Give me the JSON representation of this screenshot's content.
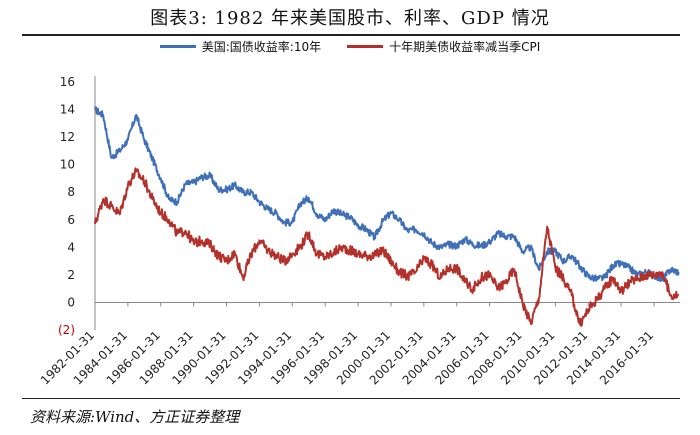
{
  "figure": {
    "title": "图表3:   1982 年来美国股市、利率、GDP 情况",
    "source": "资料来源:Wind、方正证券整理"
  },
  "chart_data": {
    "type": "line",
    "title": "",
    "xlabel": "",
    "ylabel": "",
    "ylim": [
      -2,
      16
    ],
    "yticks": [
      16,
      14,
      12,
      10,
      8,
      6,
      4,
      2,
      0
    ],
    "yticks_special": [
      "(2)"
    ],
    "x_ticks": [
      "1982-01-31",
      "1984-01-31",
      "1986-01-31",
      "1988-01-31",
      "1990-01-31",
      "1992-01-31",
      "1994-01-31",
      "1996-01-31",
      "1998-01-31",
      "2000-01-31",
      "2002-01-31",
      "2004-01-31",
      "2006-01-31",
      "2008-01-31",
      "2010-01-31",
      "2012-01-31",
      "2014-01-31",
      "2016-01-31"
    ],
    "grid": false,
    "legend_position": "top-center",
    "series": [
      {
        "name": "美国:国债收益率:10年",
        "color": "#3E6FB8",
        "x": [
          1982.0,
          1982.5,
          1983.0,
          1983.5,
          1984.0,
          1984.5,
          1985.0,
          1985.5,
          1986.0,
          1986.5,
          1987.0,
          1987.5,
          1988.0,
          1988.5,
          1989.0,
          1989.5,
          1990.0,
          1990.5,
          1991.0,
          1991.5,
          1992.0,
          1992.5,
          1993.0,
          1993.5,
          1994.0,
          1994.5,
          1995.0,
          1995.5,
          1996.0,
          1996.5,
          1997.0,
          1997.5,
          1998.0,
          1998.5,
          1999.0,
          1999.5,
          2000.0,
          2000.5,
          2001.0,
          2001.5,
          2002.0,
          2002.5,
          2003.0,
          2003.5,
          2004.0,
          2004.5,
          2005.0,
          2005.5,
          2006.0,
          2006.5,
          2007.0,
          2007.5,
          2008.0,
          2008.5,
          2009.0,
          2009.5,
          2010.0,
          2010.5,
          2011.0,
          2011.5,
          2012.0,
          2012.5,
          2013.0,
          2013.5,
          2014.0,
          2014.5,
          2015.0,
          2015.5,
          2016.0,
          2016.5,
          2017.0,
          2017.5
        ],
        "values": [
          14.0,
          13.6,
          10.5,
          11.0,
          11.8,
          13.6,
          11.8,
          10.4,
          9.0,
          7.5,
          7.3,
          8.6,
          8.7,
          9.1,
          9.2,
          8.2,
          8.2,
          8.5,
          8.0,
          8.0,
          7.3,
          6.8,
          6.5,
          5.8,
          5.8,
          7.2,
          7.6,
          6.4,
          6.0,
          6.7,
          6.4,
          6.2,
          5.6,
          5.3,
          4.7,
          5.9,
          6.5,
          6.0,
          5.2,
          5.3,
          5.0,
          4.3,
          4.0,
          4.2,
          4.1,
          4.6,
          4.2,
          4.1,
          4.4,
          5.0,
          4.8,
          4.8,
          3.7,
          4.0,
          2.4,
          3.7,
          3.7,
          3.0,
          3.4,
          2.6,
          1.9,
          1.7,
          1.8,
          2.7,
          2.8,
          2.5,
          2.0,
          2.2,
          2.0,
          1.6,
          2.4,
          2.2
        ]
      },
      {
        "name": "十年期美债收益率减当季CPI",
        "color": "#B4302A",
        "x": [
          1982.0,
          1982.5,
          1983.0,
          1983.5,
          1984.0,
          1984.5,
          1985.0,
          1985.5,
          1986.0,
          1986.5,
          1987.0,
          1987.5,
          1988.0,
          1988.5,
          1989.0,
          1989.5,
          1990.0,
          1990.5,
          1991.0,
          1991.5,
          1992.0,
          1992.5,
          1993.0,
          1993.5,
          1994.0,
          1994.5,
          1995.0,
          1995.5,
          1996.0,
          1996.5,
          1997.0,
          1997.5,
          1998.0,
          1998.5,
          1999.0,
          1999.5,
          2000.0,
          2000.5,
          2001.0,
          2001.5,
          2002.0,
          2002.5,
          2003.0,
          2003.5,
          2004.0,
          2004.5,
          2005.0,
          2005.5,
          2006.0,
          2006.5,
          2007.0,
          2007.5,
          2008.0,
          2008.5,
          2009.0,
          2009.5,
          2010.0,
          2010.5,
          2011.0,
          2011.5,
          2012.0,
          2012.5,
          2013.0,
          2013.5,
          2014.0,
          2014.5,
          2015.0,
          2015.5,
          2016.0,
          2016.5,
          2017.0,
          2017.5
        ],
        "values": [
          5.7,
          7.5,
          7.0,
          6.4,
          8.5,
          9.5,
          8.8,
          7.5,
          6.5,
          6.0,
          5.0,
          5.2,
          4.3,
          4.5,
          4.2,
          3.4,
          3.0,
          3.6,
          1.8,
          3.5,
          4.5,
          3.8,
          3.4,
          3.0,
          3.5,
          4.1,
          5.0,
          3.5,
          3.3,
          3.6,
          4.0,
          3.8,
          3.5,
          3.4,
          3.4,
          3.8,
          3.0,
          2.2,
          1.9,
          2.2,
          3.2,
          2.7,
          1.8,
          2.5,
          2.5,
          1.5,
          1.0,
          1.8,
          2.0,
          1.0,
          1.5,
          2.4,
          0.0,
          -1.5,
          0.3,
          5.5,
          2.5,
          1.7,
          0.5,
          -1.6,
          -0.5,
          0.2,
          1.0,
          1.8,
          0.8,
          1.5,
          1.7,
          2.0,
          2.0,
          2.2,
          0.5,
          0.5
        ]
      }
    ]
  }
}
